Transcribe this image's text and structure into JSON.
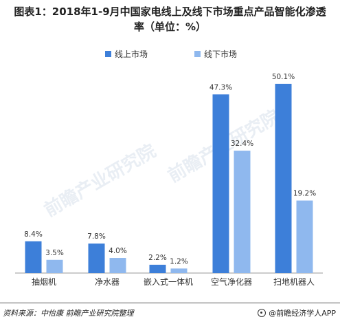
{
  "title_line1": "图表1：2018年1-9月中国家电线上及线下市场重点产品智能化渗透",
  "title_line2": "率（单位：%）",
  "source": "资料来源：中怡康   前瞻产业研究院整理",
  "brand": "@前瞻经济学人APP",
  "watermark": "前瞻产业研究院",
  "colors": {
    "online": "#3d7fd9",
    "offline": "#8fb8ee",
    "axis": "#999999"
  },
  "chart_data": {
    "type": "bar",
    "categories": [
      "抽烟机",
      "净水器",
      "嵌入式一体机",
      "空气净化器",
      "扫地机器人"
    ],
    "series": [
      {
        "name": "线上市场",
        "values": [
          8.4,
          7.8,
          2.2,
          47.3,
          50.1
        ],
        "labels": [
          "8.4%",
          "7.8%",
          "2.2%",
          "47.3%",
          "50.1%"
        ]
      },
      {
        "name": "线下市场",
        "values": [
          3.5,
          4.0,
          1.2,
          32.4,
          19.2
        ],
        "labels": [
          "3.5%",
          "4.0%",
          "1.2%",
          "32.4%",
          "19.2%"
        ]
      }
    ],
    "ylim": [
      0,
      55
    ],
    "legend": "top-center",
    "grid": false
  }
}
